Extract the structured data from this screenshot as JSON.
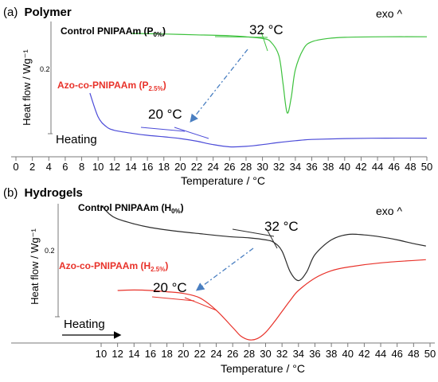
{
  "colors": {
    "control": "#3cc13c",
    "azo": "#4b4bd8",
    "hydrogel_control": "#2b2b2b",
    "hydrogel_azo": "#e8322a",
    "arrow": "#4a7fc1",
    "axis": "#7a7a7a"
  },
  "chart_data": [
    {
      "type": "line",
      "panel_label": "(a)",
      "title": "Polymer",
      "xlabel": "Temperature / °C",
      "ylabel": "Heat flow / Wg⁻¹",
      "scale_bar_label": "0.2",
      "exo_label": "exo ^",
      "direction_label": "Heating",
      "xlim": [
        0,
        50
      ],
      "x_ticks": [
        0,
        2,
        4,
        6,
        8,
        10,
        12,
        14,
        16,
        18,
        20,
        22,
        24,
        26,
        28,
        30,
        32,
        34,
        36,
        38,
        40,
        42,
        44,
        46,
        48,
        50
      ],
      "x_tick_labels": [
        "0",
        "2",
        "4",
        "6",
        "8",
        "10",
        "12",
        "14",
        "16",
        "18",
        "20",
        "22",
        "24",
        "26",
        "28",
        "30",
        "32",
        "34",
        "36",
        "38",
        "40",
        "42",
        "44",
        "46",
        "48",
        "50"
      ],
      "grid": false,
      "series": [
        {
          "name": "Control PNIPAAm (P",
          "name_sub": "0%",
          "name_suffix": ")",
          "color_key": "control",
          "x": [
            14,
            18,
            22,
            26,
            28,
            30,
            31,
            32,
            32.5,
            33,
            33.5,
            34,
            35,
            36,
            38,
            40,
            45,
            50
          ],
          "y": [
            0.0,
            -0.002,
            -0.005,
            -0.008,
            -0.012,
            -0.018,
            -0.03,
            -0.08,
            -0.18,
            -0.285,
            -0.23,
            -0.13,
            -0.055,
            -0.03,
            -0.018,
            -0.014,
            -0.012,
            -0.012
          ]
        },
        {
          "name": "Azo-co-PNIPAAm (P",
          "name_sub": "2.5%",
          "name_suffix": ")",
          "color_key": "azo",
          "x": [
            9,
            10,
            11,
            12,
            14,
            16,
            18,
            20,
            22,
            24,
            26,
            28,
            30,
            32,
            34,
            36,
            40,
            45,
            50
          ],
          "y": [
            0.0,
            -0.11,
            -0.155,
            -0.172,
            -0.185,
            -0.195,
            -0.202,
            -0.21,
            -0.222,
            -0.238,
            -0.248,
            -0.246,
            -0.238,
            -0.228,
            -0.22,
            -0.214,
            -0.21,
            -0.208,
            -0.208
          ]
        }
      ],
      "annotations": [
        {
          "text": "32 °C",
          "x": 32,
          "y": -0.03
        },
        {
          "text": "20 °C",
          "x": 20,
          "y": -0.21
        }
      ]
    },
    {
      "type": "line",
      "panel_label": "(b)",
      "title": "Hydrogels",
      "xlabel": "Temperature / °C",
      "ylabel": "Heat flow / Wg⁻¹",
      "scale_bar_label": "0.2",
      "exo_label": "exo ^",
      "direction_label": "Heating",
      "xlim": [
        10,
        50
      ],
      "x_ticks": [
        10,
        12,
        14,
        16,
        18,
        20,
        22,
        24,
        26,
        28,
        30,
        32,
        34,
        36,
        38,
        40,
        42,
        44,
        46,
        48,
        50
      ],
      "x_tick_labels": [
        "10",
        "12",
        "14",
        "16",
        "18",
        "20",
        "22",
        "24",
        "26",
        "28",
        "30",
        "32",
        "34",
        "36",
        "38",
        "40",
        "42",
        "44",
        "46",
        "48",
        "50"
      ],
      "grid": false,
      "series": [
        {
          "name": "Control PNIPAAm (H",
          "name_sub": "0%",
          "name_suffix": ")",
          "color_key": "hydrogel_control",
          "x": [
            10,
            11,
            12,
            14,
            16,
            18,
            20,
            22,
            24,
            26,
            28,
            30,
            31,
            32,
            33,
            34,
            35,
            36,
            38,
            40,
            42,
            44,
            46,
            48,
            49.5
          ],
          "y": [
            0.0,
            -0.035,
            -0.055,
            -0.075,
            -0.09,
            -0.1,
            -0.108,
            -0.115,
            -0.122,
            -0.128,
            -0.132,
            -0.14,
            -0.15,
            -0.185,
            -0.27,
            -0.305,
            -0.27,
            -0.2,
            -0.14,
            -0.118,
            -0.12,
            -0.128,
            -0.14,
            -0.155,
            -0.165
          ]
        },
        {
          "name": "Azo-co-PNIPAAm (H",
          "name_sub": "2.5%",
          "name_suffix": ")",
          "color_key": "hydrogel_azo",
          "x": [
            12,
            14,
            16,
            18,
            20,
            22,
            24,
            26,
            27,
            28,
            29,
            30,
            31,
            32,
            33,
            34,
            36,
            38,
            40,
            44,
            49.5
          ],
          "y": [
            -0.3,
            -0.298,
            -0.3,
            -0.305,
            -0.312,
            -0.33,
            -0.38,
            -0.45,
            -0.485,
            -0.5,
            -0.495,
            -0.47,
            -0.43,
            -0.385,
            -0.34,
            -0.3,
            -0.25,
            -0.22,
            -0.205,
            -0.188,
            -0.175
          ]
        }
      ],
      "annotations": [
        {
          "text": "32 °C",
          "x": 32,
          "y": -0.15
        },
        {
          "text": "20 °C",
          "x": 20,
          "y": -0.312
        }
      ]
    }
  ]
}
